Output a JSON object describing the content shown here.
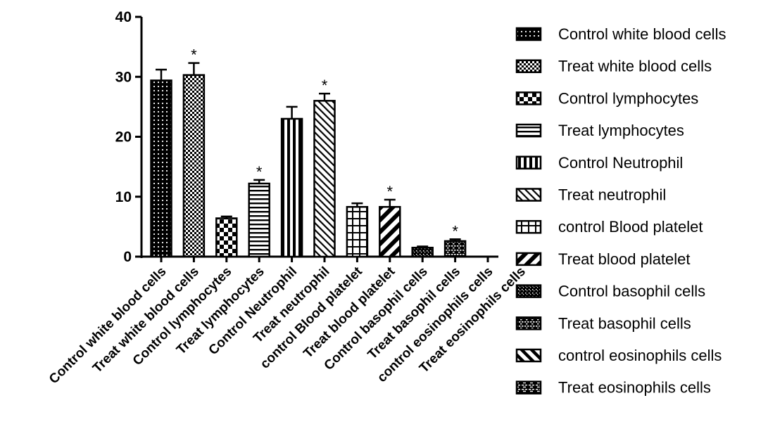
{
  "chart_data": {
    "type": "bar",
    "title": "",
    "xlabel": "",
    "ylabel": "",
    "ylim": [
      0,
      40
    ],
    "yticks": [
      0,
      10,
      20,
      30,
      40
    ],
    "legend_position": "right",
    "grid": false,
    "categories": [
      "Control white blood cells",
      "Treat white blood cells",
      "Control lymphocytes",
      "Treat lymphocytes",
      "Control Neutrophil",
      "Treat neutrophil",
      "control Blood platelet",
      "Treat blood platelet",
      "Control basophil cells",
      "Treat basophil cells",
      "control eosinophils cells",
      "Treat eosinophils cells"
    ],
    "values": [
      29.4,
      30.3,
      6.4,
      12.2,
      23.0,
      26.0,
      8.3,
      8.3,
      1.5,
      2.6,
      0,
      0
    ],
    "errors": [
      1.8,
      2.0,
      0.3,
      0.6,
      2.0,
      1.2,
      0.6,
      1.2,
      0.2,
      0.3,
      0,
      0
    ],
    "significance": [
      "",
      "*",
      "",
      "*",
      "",
      "*",
      "",
      "*",
      "",
      "*",
      "",
      ""
    ],
    "patterns": [
      "dots",
      "check",
      "bigcheck",
      "hlines",
      "vlines",
      "diag",
      "grid",
      "wdiag",
      "dense",
      "brick",
      "widediag",
      "bricks2"
    ],
    "legend": [
      "Control white blood cells",
      "Treat white blood cells",
      "Control lymphocytes",
      "Treat lymphocytes",
      "Control Neutrophil",
      "Treat neutrophil",
      "control Blood platelet",
      "Treat blood platelet",
      "Control basophil cells",
      "Treat basophil cells",
      "control eosinophils cells",
      "Treat eosinophils cells"
    ]
  }
}
